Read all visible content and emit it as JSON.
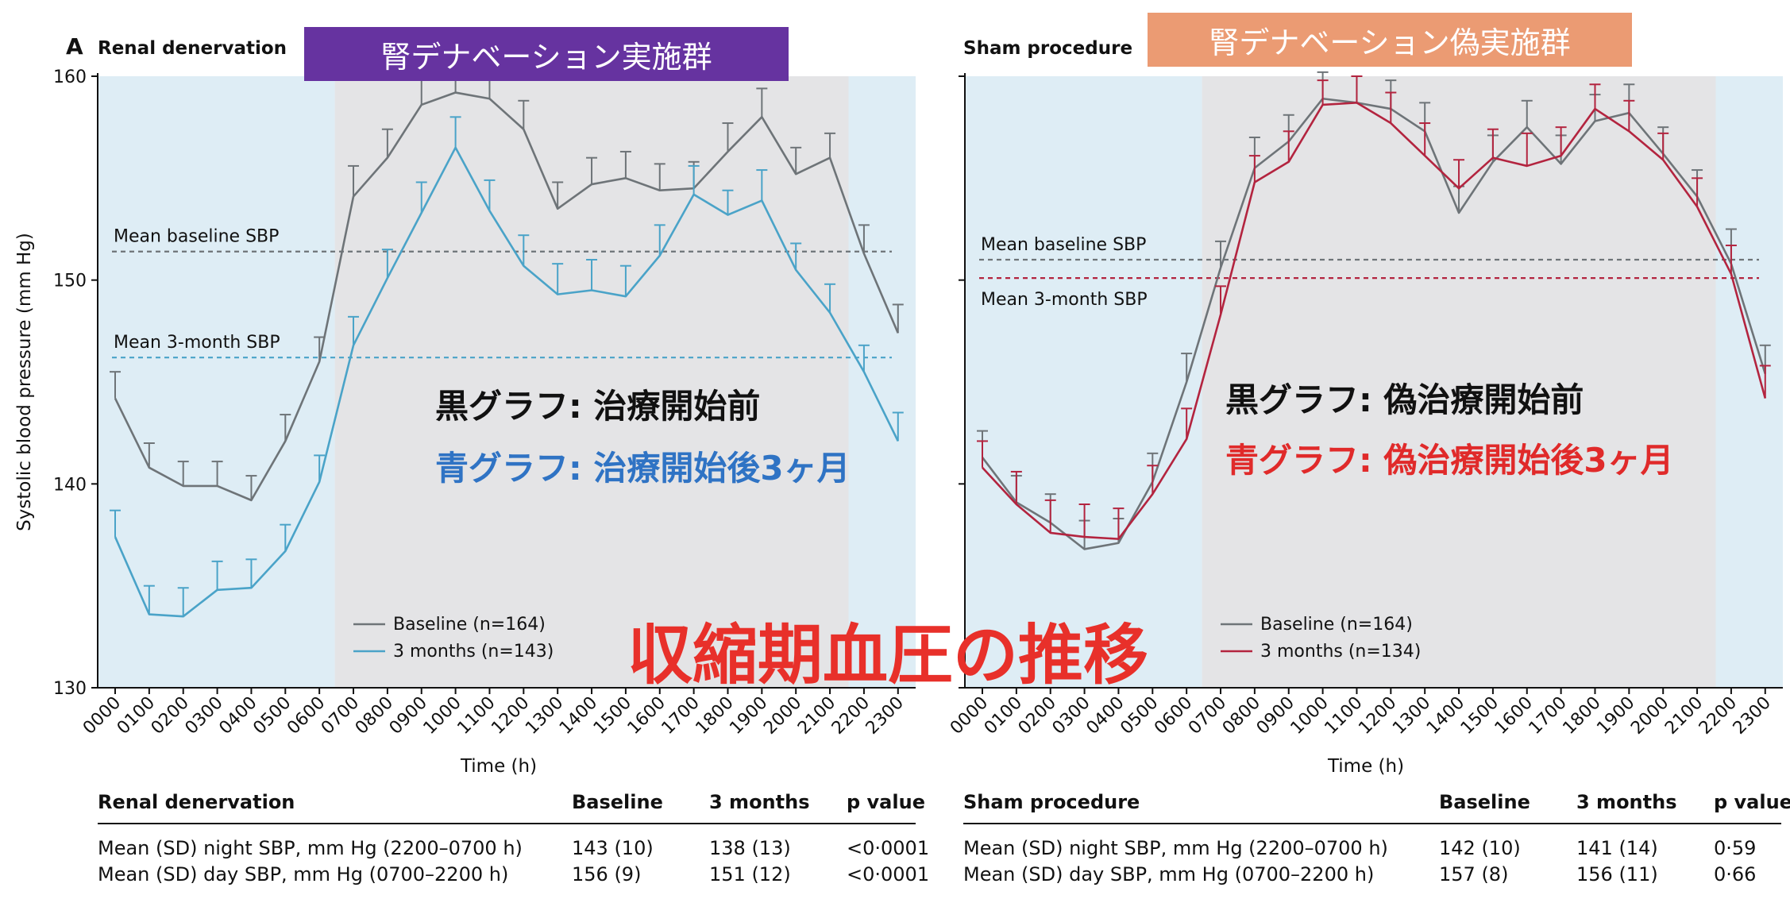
{
  "banners": {
    "left": {
      "text": "腎デナベーション実施群",
      "color": "#6633a0"
    },
    "right": {
      "text": "腎デナベーション偽実施群",
      "color": "#eb9b73"
    }
  },
  "notes": {
    "left_black": "黒グラフ: 治療開始前",
    "left_blue": "青グラフ: 治療開始後3ヶ月",
    "right_black": "黒グラフ: 偽治療開始前",
    "right_red": "青グラフ: 偽治療開始後3ヶ月"
  },
  "overlay_title": "収縮期血圧の推移",
  "colors": {
    "baseline": "#6e7478",
    "left_3m": "#4aa3c8",
    "right_3m": "#b3243f",
    "night_bg": "#deedf5",
    "day_bg": "#e4e4e6",
    "left_note_blue": "#2f73c4",
    "right_note_red": "#e02a2a"
  },
  "chart_data": [
    {
      "type": "line",
      "panel_letter": "A",
      "title": "Renal denervation",
      "xlabel": "Time (h)",
      "ylabel": "Systolic blood pressure (mm Hg)",
      "ylim": [
        130,
        160
      ],
      "yticks": [
        130,
        140,
        150,
        160
      ],
      "x": [
        "0000",
        "0100",
        "0200",
        "0300",
        "0400",
        "0500",
        "0600",
        "0700",
        "0800",
        "0900",
        "1000",
        "1100",
        "1200",
        "1300",
        "1400",
        "1500",
        "1600",
        "1700",
        "1800",
        "1900",
        "2000",
        "2100",
        "2200",
        "2300"
      ],
      "series": [
        {
          "name": "Baseline (n=164)",
          "color_key": "baseline",
          "values": [
            144.2,
            140.8,
            139.9,
            139.9,
            139.2,
            142.1,
            146.0,
            154.1,
            156.0,
            158.6,
            159.2,
            158.9,
            157.4,
            153.5,
            154.7,
            155.0,
            154.4,
            154.5,
            156.3,
            158.0,
            155.2,
            156.0,
            151.3,
            147.4
          ],
          "err": [
            1.3,
            1.2,
            1.2,
            1.2,
            1.2,
            1.3,
            1.2,
            1.5,
            1.4,
            1.3,
            1.3,
            1.3,
            1.4,
            1.3,
            1.3,
            1.3,
            1.3,
            1.3,
            1.4,
            1.4,
            1.3,
            1.2,
            1.4,
            1.4
          ]
        },
        {
          "name": "3 months (n=143)",
          "color_key": "left_3m",
          "values": [
            137.4,
            133.6,
            133.5,
            134.8,
            134.9,
            136.7,
            140.1,
            146.8,
            150.1,
            153.3,
            156.5,
            153.4,
            150.7,
            149.3,
            149.5,
            149.2,
            151.2,
            154.2,
            153.2,
            153.9,
            150.5,
            148.4,
            145.5,
            142.1
          ],
          "err": [
            1.3,
            1.4,
            1.4,
            1.4,
            1.4,
            1.3,
            1.3,
            1.4,
            1.4,
            1.5,
            1.5,
            1.5,
            1.5,
            1.5,
            1.5,
            1.5,
            1.5,
            1.4,
            1.2,
            1.5,
            1.3,
            1.4,
            1.3,
            1.4
          ]
        }
      ],
      "reference_lines": [
        {
          "label": "Mean baseline SBP",
          "value": 151.4,
          "color_key": "baseline"
        },
        {
          "label": "Mean 3-month SBP",
          "value": 146.2,
          "color_key": "left_3m"
        }
      ],
      "day_period": [
        "0700",
        "2200"
      ],
      "legend_position": "bottom-center"
    },
    {
      "type": "line",
      "title": "Sham procedure",
      "xlabel": "Time (h)",
      "ylim": [
        130,
        160
      ],
      "x": [
        "0000",
        "0100",
        "0200",
        "0300",
        "0400",
        "0500",
        "0600",
        "0700",
        "0800",
        "0900",
        "1000",
        "1100",
        "1200",
        "1300",
        "1400",
        "1500",
        "1600",
        "1700",
        "1800",
        "1900",
        "2000",
        "2100",
        "2200",
        "2300"
      ],
      "series": [
        {
          "name": "Baseline (n=164)",
          "color_key": "baseline",
          "values": [
            141.3,
            139.1,
            138.1,
            136.8,
            137.1,
            140.1,
            145.0,
            150.6,
            155.5,
            156.8,
            158.9,
            158.7,
            158.4,
            157.3,
            153.3,
            155.8,
            157.5,
            155.7,
            157.8,
            158.2,
            156.2,
            154.1,
            150.8,
            145.4
          ],
          "err": [
            1.3,
            1.3,
            1.4,
            1.4,
            1.2,
            1.4,
            1.4,
            1.3,
            1.5,
            1.3,
            1.3,
            1.3,
            1.4,
            1.4,
            1.3,
            1.3,
            1.3,
            1.4,
            1.3,
            1.4,
            1.3,
            1.3,
            1.7,
            1.4
          ]
        },
        {
          "name": "3 months (n=134)",
          "color_key": "right_3m",
          "values": [
            140.8,
            139.0,
            137.6,
            137.4,
            137.3,
            139.5,
            142.2,
            148.3,
            154.8,
            155.8,
            158.6,
            158.7,
            157.7,
            156.1,
            154.5,
            156.0,
            155.6,
            156.1,
            158.4,
            157.3,
            155.9,
            153.6,
            150.3,
            144.2
          ],
          "err": [
            1.3,
            1.6,
            1.6,
            1.6,
            1.5,
            1.4,
            1.5,
            1.4,
            1.3,
            1.5,
            1.2,
            1.3,
            1.5,
            1.6,
            1.4,
            1.4,
            1.6,
            1.4,
            1.2,
            1.5,
            1.3,
            1.4,
            1.4,
            1.6
          ]
        }
      ],
      "reference_lines": [
        {
          "label": "Mean baseline SBP",
          "value": 151.0,
          "color_key": "baseline"
        },
        {
          "label": "Mean 3-month SBP",
          "value": 150.1,
          "color_key": "right_3m"
        }
      ],
      "day_period": [
        "0700",
        "2200"
      ],
      "legend_position": "bottom-left"
    }
  ],
  "tables": [
    {
      "title": "Renal denervation",
      "columns": [
        "Baseline",
        "3 months",
        "p value"
      ],
      "rows": [
        {
          "label": "Mean (SD) night SBP, mm Hg (2200–0700 h)",
          "baseline": "143 (10)",
          "three_months": "138 (13)",
          "p": "<0·0001"
        },
        {
          "label": "Mean (SD) day SBP, mm Hg (0700–2200 h)",
          "baseline": "156 (9)",
          "three_months": "151 (12)",
          "p": "<0·0001"
        }
      ]
    },
    {
      "title": "Sham procedure",
      "columns": [
        "Baseline",
        "3 months",
        "p value"
      ],
      "rows": [
        {
          "label": "Mean (SD) night SBP, mm Hg (2200–0700 h)",
          "baseline": "142 (10)",
          "three_months": "141 (14)",
          "p": "0·59"
        },
        {
          "label": "Mean (SD) day SBP, mm Hg (0700–2200 h)",
          "baseline": "157 (8)",
          "three_months": "156 (11)",
          "p": "0·66"
        }
      ]
    }
  ]
}
